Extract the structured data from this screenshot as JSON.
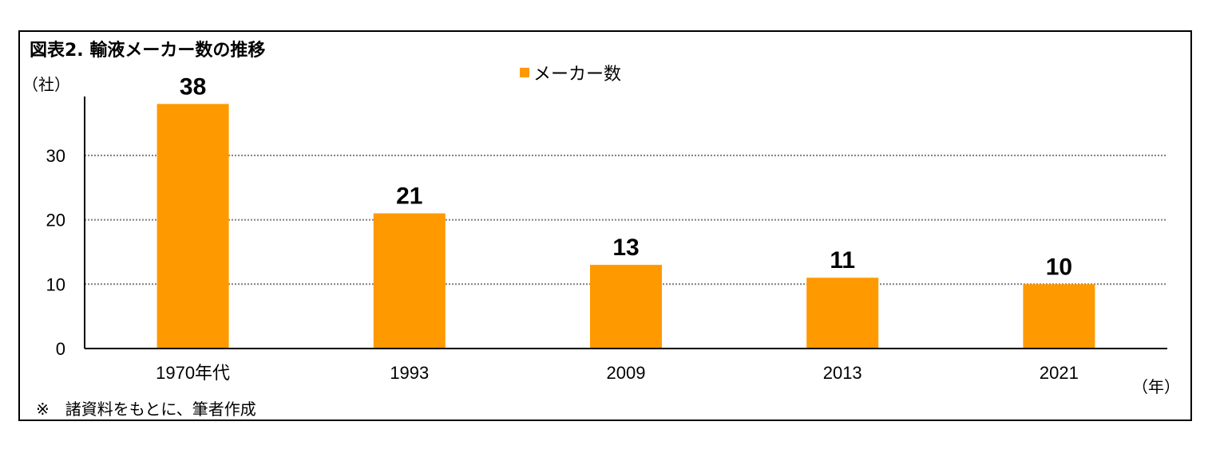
{
  "title": "図表2.  輸液メーカー数の推移",
  "note": "※　諸資料をもとに、筆者作成",
  "colors": {
    "bar": "#FF9900",
    "grid": "#7f7f7f",
    "axis": "#000000"
  },
  "chart_data": {
    "type": "bar",
    "categories": [
      "1970年代",
      "1993",
      "2009",
      "2013",
      "2021"
    ],
    "series": [
      {
        "name": "メーカー数",
        "values": [
          38,
          21,
          13,
          11,
          10
        ]
      }
    ],
    "data_labels": [
      "38",
      "21",
      "13",
      "11",
      "10"
    ],
    "ylabel": "（社）",
    "xlabel": "（年）",
    "yticks": [
      "0",
      "10",
      "20",
      "30"
    ],
    "ytick_values": [
      0,
      10,
      20,
      30
    ],
    "ylim": [
      0,
      38
    ],
    "grid": true,
    "legend_position": "top-center"
  }
}
